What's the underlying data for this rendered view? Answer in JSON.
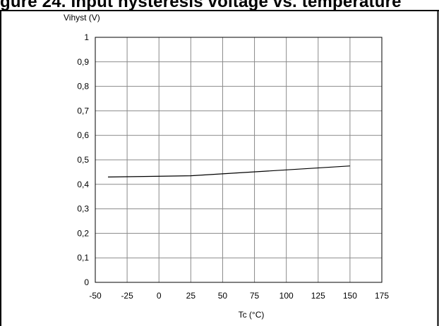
{
  "page": {
    "heading": "gure 24. Input hysteresis voltage vs. temperature"
  },
  "chart_data": {
    "type": "line",
    "title": "",
    "xlabel": "Tc (°C)",
    "ylabel": "Vihyst (V)",
    "xlim": [
      -50,
      175
    ],
    "ylim": [
      0,
      1
    ],
    "x_ticks": [
      -50,
      -25,
      0,
      25,
      50,
      75,
      100,
      125,
      150,
      175
    ],
    "x_tick_labels": [
      "-50",
      "-25",
      "0",
      "25",
      "50",
      "75",
      "100",
      "125",
      "150",
      "175"
    ],
    "y_ticks": [
      0,
      0.1,
      0.2,
      0.3,
      0.4,
      0.5,
      0.6,
      0.7,
      0.8,
      0.9,
      1
    ],
    "y_tick_labels": [
      "0",
      "0,1",
      "0,2",
      "0,3",
      "0,4",
      "0,5",
      "0,6",
      "0,7",
      "0,8",
      "0,9",
      "1"
    ],
    "grid": true,
    "series": [
      {
        "x": [
          -40,
          25,
          150
        ],
        "y": [
          0.43,
          0.435,
          0.475
        ],
        "color": "#000000"
      }
    ]
  }
}
